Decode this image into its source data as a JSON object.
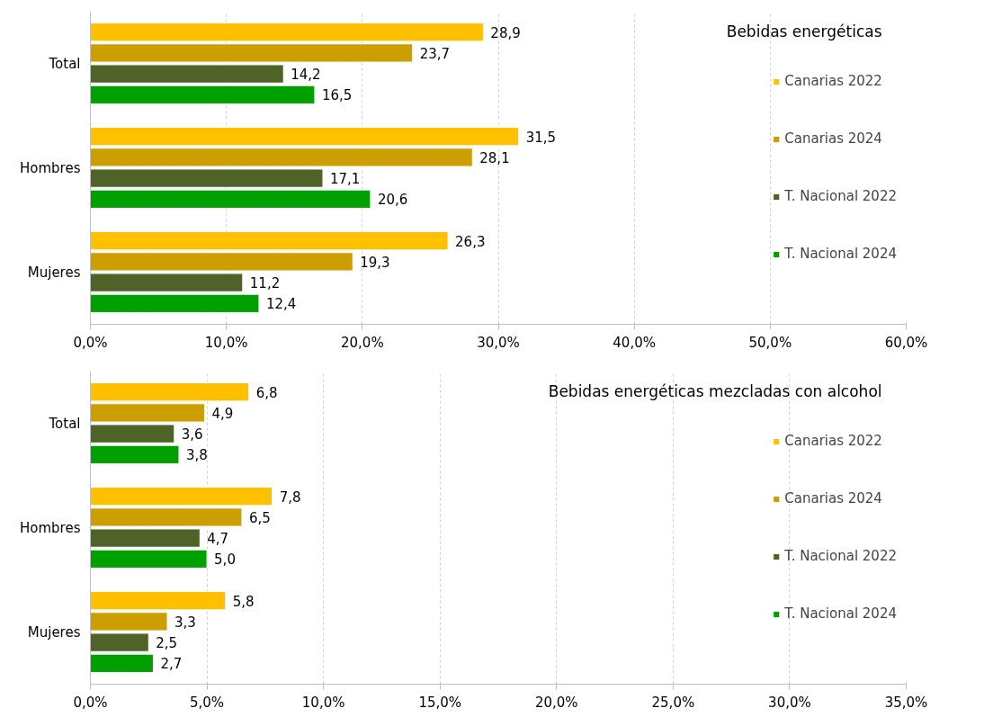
{
  "chart_data": [
    {
      "type": "bar",
      "orientation": "horizontal",
      "title": "Bebidas energéticas",
      "categories": [
        "Total",
        "Hombres",
        "Mujeres"
      ],
      "xlim": [
        0,
        60
      ],
      "xticks": [
        {
          "value": 0,
          "label": "0,0%"
        },
        {
          "value": 10,
          "label": "10,0%"
        },
        {
          "value": 20,
          "label": "20,0%"
        },
        {
          "value": 30,
          "label": "30,0%"
        },
        {
          "value": 40,
          "label": "40,0%"
        },
        {
          "value": 50,
          "label": "50,0%"
        },
        {
          "value": 60,
          "label": "60,0%"
        }
      ],
      "grid": "x",
      "legend": "right",
      "series": [
        {
          "name": "Canarias 2022",
          "color": "#ffc000",
          "values": [
            28.9,
            31.5,
            26.3
          ],
          "value_labels": [
            "28,9",
            "31,5",
            "26,3"
          ]
        },
        {
          "name": "Canarias 2024",
          "color": "#cc9e00",
          "values": [
            23.7,
            28.1,
            19.3
          ],
          "value_labels": [
            "23,7",
            "28,1",
            "19,3"
          ]
        },
        {
          "name": "T. Nacional 2022",
          "color": "#4f6228",
          "values": [
            14.2,
            17.1,
            11.2
          ],
          "value_labels": [
            "14,2",
            "17,1",
            "11,2"
          ]
        },
        {
          "name": "T. Nacional 2024",
          "color": "#00a000",
          "values": [
            16.5,
            20.6,
            12.4
          ],
          "value_labels": [
            "16,5",
            "20,6",
            "12,4"
          ]
        }
      ]
    },
    {
      "type": "bar",
      "orientation": "horizontal",
      "title": "Bebidas energéticas mezcladas con alcohol",
      "categories": [
        "Total",
        "Hombres",
        "Mujeres"
      ],
      "xlim": [
        0,
        35
      ],
      "xticks": [
        {
          "value": 0,
          "label": "0,0%"
        },
        {
          "value": 5,
          "label": "5,0%"
        },
        {
          "value": 10,
          "label": "10,0%"
        },
        {
          "value": 15,
          "label": "15,0%"
        },
        {
          "value": 20,
          "label": "20,0%"
        },
        {
          "value": 25,
          "label": "25,0%"
        },
        {
          "value": 30,
          "label": "30,0%"
        },
        {
          "value": 35,
          "label": "35,0%"
        }
      ],
      "grid": "x",
      "legend": "right",
      "series": [
        {
          "name": "Canarias 2022",
          "color": "#ffc000",
          "values": [
            6.8,
            7.8,
            5.8
          ],
          "value_labels": [
            "6,8",
            "7,8",
            "5,8"
          ]
        },
        {
          "name": "Canarias 2024",
          "color": "#cc9e00",
          "values": [
            4.9,
            6.5,
            3.3
          ],
          "value_labels": [
            "4,9",
            "6,5",
            "3,3"
          ]
        },
        {
          "name": "T. Nacional 2022",
          "color": "#4f6228",
          "values": [
            3.6,
            4.7,
            2.5
          ],
          "value_labels": [
            "3,6",
            "4,7",
            "2,5"
          ]
        },
        {
          "name": "T. Nacional 2024",
          "color": "#00a000",
          "values": [
            3.8,
            5.0,
            2.7
          ],
          "value_labels": [
            "3,8",
            "5,0",
            "2,7"
          ]
        }
      ]
    }
  ]
}
